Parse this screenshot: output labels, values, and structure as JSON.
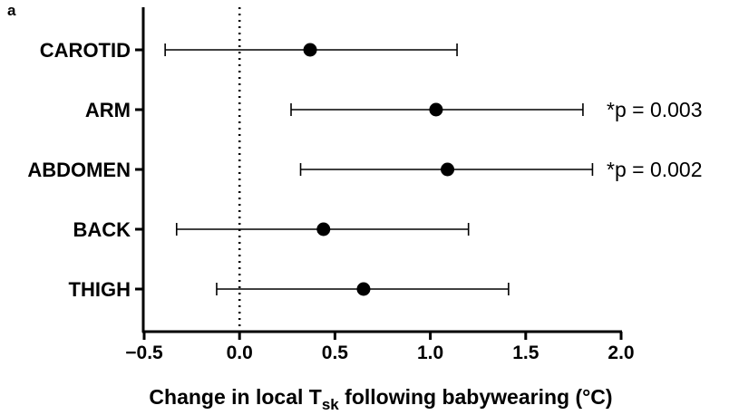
{
  "panel_label": "a",
  "chart_data": {
    "type": "scatter",
    "orientation": "horizontal",
    "categories": [
      "CAROTID",
      "ARM",
      "ABDOMEN",
      "BACK",
      "THIGH"
    ],
    "estimates": [
      0.37,
      1.03,
      1.09,
      0.44,
      0.65
    ],
    "ci_low": [
      -0.39,
      0.27,
      0.32,
      -0.33,
      -0.12
    ],
    "ci_high": [
      1.14,
      1.8,
      1.85,
      1.2,
      1.41
    ],
    "annotations": [
      "",
      "*p = 0.003",
      "*p = 0.002",
      "",
      ""
    ],
    "xlim": [
      -0.5,
      2.0
    ],
    "xticks": [
      -0.5,
      0.0,
      0.5,
      1.0,
      1.5,
      2.0
    ],
    "xtick_labels": [
      "−0.5",
      "0.0",
      "0.5",
      "1.0",
      "1.5",
      "2.0"
    ],
    "reference_line": 0.0,
    "xlabel_main": "Change in local T",
    "xlabel_sub": "sk",
    "xlabel_rest": " following babywearing (°C)",
    "grid": false
  }
}
